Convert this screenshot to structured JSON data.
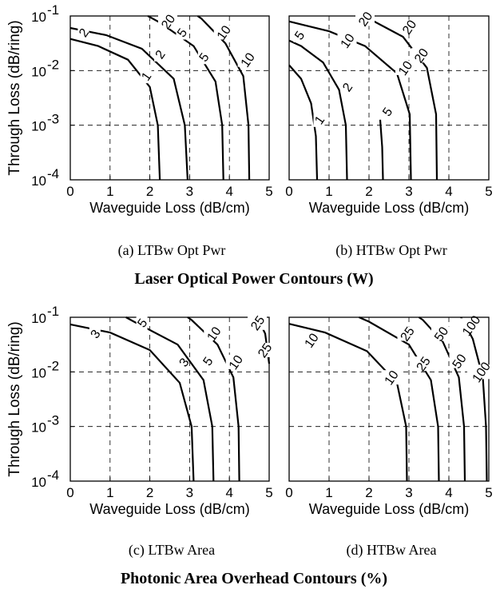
{
  "chart_data": [
    {
      "type": "line",
      "caption": "(a) LTBw Opt Pwr",
      "xlabel": "Waveguide Loss (dB/cm)",
      "ylabel": "Through Loss (dB/ring)",
      "xlim": [
        0,
        5
      ],
      "ylim_log10": [
        -4,
        -1
      ],
      "x_ticks": [
        "0",
        "1",
        "2",
        "3",
        "4",
        "5"
      ],
      "y_ticks": [
        "10",
        "10",
        "10",
        "10"
      ],
      "y_tick_exponents": [
        "-4",
        "-3",
        "-2",
        "-1"
      ],
      "log_y": true,
      "grid": true,
      "series": [
        {
          "name": "1",
          "points": [
            [
              2.25,
              -4
            ],
            [
              2.2,
              -3
            ],
            [
              2.0,
              -2.3
            ],
            [
              1.45,
              -1.8
            ],
            [
              0.7,
              -1.55
            ],
            [
              0,
              -1.42
            ]
          ],
          "label_at": [
            1.9,
            -2.1
          ]
        },
        {
          "name": "2",
          "points": [
            [
              2.95,
              -4
            ],
            [
              2.88,
              -3
            ],
            [
              2.6,
              -2.15
            ],
            [
              1.8,
              -1.6
            ],
            [
              0.9,
              -1.35
            ],
            [
              0,
              -1.22
            ]
          ],
          "label_at": [
            2.25,
            -1.7
          ]
        },
        {
          "name": "2",
          "points": [
            [
              0,
              -1.22
            ]
          ],
          "label_at": [
            0.33,
            -1.3
          ]
        },
        {
          "name": "5",
          "points": [
            [
              3.85,
              -4
            ],
            [
              3.82,
              -3
            ],
            [
              3.65,
              -2.2
            ],
            [
              3.1,
              -1.55
            ],
            [
              2.25,
              -1.12
            ],
            [
              1.95,
              -1
            ]
          ],
          "label_at": [
            3.35,
            -1.75
          ]
        },
        {
          "name": "5",
          "points": [
            [
              1.95,
              -1
            ]
          ],
          "label_at": [
            2.8,
            -1.3
          ]
        },
        {
          "name": "10",
          "points": [
            [
              4.5,
              -4
            ],
            [
              4.48,
              -3
            ],
            [
              4.35,
              -2.1
            ],
            [
              3.9,
              -1.5
            ],
            [
              3.3,
              -1.05
            ],
            [
              3.2,
              -1
            ]
          ],
          "label_at": [
            4.45,
            -1.8
          ]
        },
        {
          "name": "10",
          "points": [
            [
              3.2,
              -1
            ]
          ],
          "label_at": [
            3.85,
            -1.3
          ]
        },
        {
          "name": "20",
          "points": [
            [
              2.3,
              -1
            ]
          ],
          "label_at": [
            2.45,
            -1.1
          ]
        }
      ]
    },
    {
      "type": "line",
      "caption": "(b) HTBw Opt Pwr",
      "xlabel": "Waveguide Loss (dB/cm)",
      "xlim": [
        0,
        5
      ],
      "ylim_log10": [
        -4,
        -1
      ],
      "x_ticks": [
        "0",
        "1",
        "2",
        "3",
        "4",
        "5"
      ],
      "log_y": true,
      "grid": true,
      "series": [
        {
          "name": "1",
          "points": [
            [
              0.7,
              -4
            ],
            [
              0.67,
              -3.2
            ],
            [
              0.55,
              -2.6
            ],
            [
              0.3,
              -2.15
            ],
            [
              0,
              -1.9
            ]
          ],
          "label_at": [
            0.75,
            -2.9
          ]
        },
        {
          "name": "2",
          "points": [
            [
              1.45,
              -4
            ],
            [
              1.42,
              -3.0
            ],
            [
              1.25,
              -2.35
            ],
            [
              0.85,
              -1.85
            ],
            [
              0.3,
              -1.55
            ],
            [
              0,
              -1.45
            ]
          ],
          "label_at": [
            1.45,
            -2.3
          ]
        },
        {
          "name": "5",
          "points": [
            [
              2.35,
              -4
            ],
            [
              2.33,
              -3.4
            ],
            [
              2.28,
              -2.9
            ]
          ],
          "label_at": [
            2.45,
            -2.75
          ]
        },
        {
          "name": "5",
          "points": [
            [
              0,
              -1.25
            ]
          ],
          "label_at": [
            0.25,
            -1.35
          ]
        },
        {
          "name": "10",
          "points": [
            [
              3.05,
              -4
            ],
            [
              3.02,
              -2.8
            ],
            [
              2.7,
              -2.05
            ],
            [
              1.9,
              -1.55
            ],
            [
              1.0,
              -1.28
            ],
            [
              0,
              -1.1
            ]
          ],
          "label_at": [
            2.9,
            -1.95
          ]
        },
        {
          "name": "10",
          "points": [
            [
              0,
              -1.1
            ]
          ],
          "label_at": [
            1.45,
            -1.45
          ]
        },
        {
          "name": "20",
          "points": [
            [
              3.7,
              -4
            ],
            [
              3.68,
              -2.8
            ],
            [
              3.45,
              -1.95
            ],
            [
              2.85,
              -1.38
            ],
            [
              2.0,
              -1.05
            ],
            [
              1.85,
              -1
            ]
          ],
          "label_at": [
            3.3,
            -1.72
          ]
        },
        {
          "name": "20",
          "points": [
            [
              1.85,
              -1
            ]
          ],
          "label_at": [
            3.0,
            -1.2
          ]
        },
        {
          "name": "20",
          "points": [
            [
              1.85,
              -1
            ]
          ],
          "label_at": [
            1.9,
            -1.05
          ]
        }
      ]
    },
    {
      "type": "line",
      "caption": "(c) LTBw Area",
      "xlabel": "Waveguide Loss (dB/cm)",
      "ylabel": "Through Loss (dB/ring)",
      "xlim": [
        0,
        5
      ],
      "ylim_log10": [
        -4,
        -1
      ],
      "x_ticks": [
        "0",
        "1",
        "2",
        "3",
        "4",
        "5"
      ],
      "y_ticks": [
        "10",
        "10",
        "10",
        "10"
      ],
      "y_tick_exponents": [
        "-4",
        "-3",
        "-2",
        "-1"
      ],
      "log_y": true,
      "grid": true,
      "series": [
        {
          "name": "3",
          "points": [
            [
              3.1,
              -4
            ],
            [
              3.05,
              -3
            ],
            [
              2.75,
              -2.2
            ],
            [
              2.0,
              -1.6
            ],
            [
              1.0,
              -1.28
            ],
            [
              0,
              -1.13
            ]
          ],
          "label_at": [
            0.62,
            -1.3
          ]
        },
        {
          "name": "3",
          "points": [
            [
              0,
              -1.13
            ]
          ],
          "label_at": [
            2.85,
            -1.82
          ]
        },
        {
          "name": "5",
          "points": [
            [
              3.6,
              -4
            ],
            [
              3.57,
              -3
            ],
            [
              3.35,
              -2.15
            ],
            [
              2.7,
              -1.5
            ],
            [
              1.6,
              -1.08
            ],
            [
              1.4,
              -1
            ]
          ],
          "label_at": [
            3.45,
            -1.8
          ]
        },
        {
          "name": "5",
          "points": [
            [
              1.4,
              -1
            ]
          ],
          "label_at": [
            1.8,
            -1.1
          ]
        },
        {
          "name": "10",
          "points": [
            [
              4.25,
              -4
            ],
            [
              4.23,
              -3
            ],
            [
              4.1,
              -2.1
            ],
            [
              3.7,
              -1.5
            ],
            [
              3.05,
              -1.05
            ],
            [
              2.95,
              -1
            ]
          ],
          "label_at": [
            4.15,
            -1.82
          ]
        },
        {
          "name": "10",
          "points": [
            [
              2.95,
              -1
            ]
          ],
          "label_at": [
            3.6,
            -1.3
          ]
        },
        {
          "name": "25",
          "points": [
            [
              5.0,
              -1.85
            ],
            [
              4.9,
              -1.3
            ],
            [
              4.7,
              -1
            ]
          ],
          "label_at": [
            4.7,
            -1.1
          ]
        },
        {
          "name": "25",
          "points": [
            [
              5.0,
              -1.85
            ]
          ],
          "label_at": [
            4.88,
            -1.6
          ]
        }
      ]
    },
    {
      "type": "line",
      "caption": "(d) HTBw Area",
      "xlabel": "Waveguide Loss (dB/cm)",
      "xlim": [
        0,
        5
      ],
      "ylim_log10": [
        -4,
        -1
      ],
      "x_ticks": [
        "0",
        "1",
        "2",
        "3",
        "4",
        "5"
      ],
      "log_y": true,
      "grid": true,
      "series": [
        {
          "name": "10",
          "points": [
            [
              2.95,
              -4
            ],
            [
              2.93,
              -3
            ],
            [
              2.7,
              -2.2
            ],
            [
              1.95,
              -1.62
            ],
            [
              0.9,
              -1.28
            ],
            [
              0,
              -1.12
            ]
          ],
          "label_at": [
            0.55,
            -1.42
          ]
        },
        {
          "name": "10",
          "points": [
            [
              0,
              -1.12
            ]
          ],
          "label_at": [
            2.55,
            -2.1
          ]
        },
        {
          "name": "25",
          "points": [
            [
              3.75,
              -4
            ],
            [
              3.73,
              -3
            ],
            [
              3.55,
              -2.15
            ],
            [
              3.0,
              -1.5
            ],
            [
              2.0,
              -1.08
            ],
            [
              1.75,
              -1
            ]
          ],
          "label_at": [
            2.95,
            -1.3
          ]
        },
        {
          "name": "25",
          "points": [
            [
              1.75,
              -1
            ]
          ],
          "label_at": [
            3.35,
            -1.85
          ]
        },
        {
          "name": "50",
          "points": [
            [
              4.4,
              -4
            ],
            [
              4.38,
              -3
            ],
            [
              4.25,
              -2.1
            ],
            [
              3.85,
              -1.45
            ],
            [
              3.35,
              -1.05
            ],
            [
              3.25,
              -1
            ]
          ],
          "label_at": [
            3.8,
            -1.3
          ]
        },
        {
          "name": "50",
          "points": [
            [
              3.25,
              -1
            ]
          ],
          "label_at": [
            4.25,
            -1.8
          ]
        },
        {
          "name": "100",
          "points": [
            [
              4.95,
              -4
            ],
            [
              4.93,
              -3
            ],
            [
              4.85,
              -2.1
            ],
            [
              4.6,
              -1.4
            ],
            [
              4.35,
              -1.05
            ],
            [
              4.3,
              -1
            ]
          ],
          "label_at": [
            4.55,
            -1.15
          ]
        },
        {
          "name": "100",
          "points": [
            [
              4.3,
              -1
            ]
          ],
          "label_at": [
            4.8,
            -2.0
          ]
        },
        {
          "name": "",
          "points": [
            [
              4.5,
              -1.0
            ]
          ],
          "label_at": [
            2.2,
            -1.05
          ]
        }
      ]
    }
  ],
  "section_titles": {
    "top": "Laser Optical Power Contours (W)",
    "bottom": "Photonic Area Overhead Contours (%)"
  },
  "colors": {
    "line": "#000000",
    "background": "#ffffff"
  }
}
